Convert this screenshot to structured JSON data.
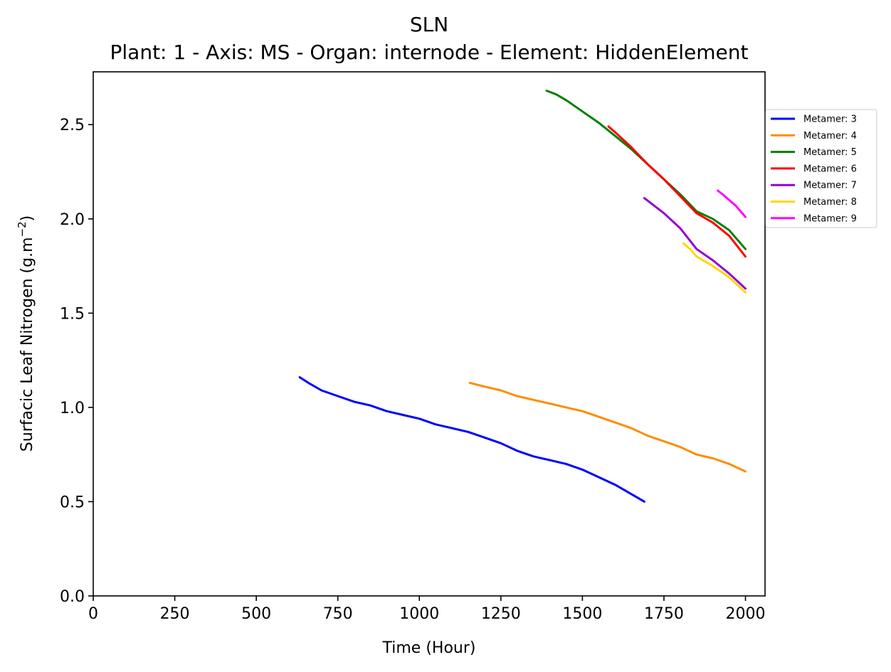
{
  "chart_data": {
    "type": "line",
    "title": "SLN",
    "subtitle": "Plant: 1 - Axis: MS - Organ: internode - Element: HiddenElement",
    "xlabel": "Time (Hour)",
    "ylabel": "Surfacic Leaf Nitrogen (g.m",
    "ylabel_sup": "−2",
    "ylabel_close": ")",
    "xlim": [
      0,
      2060
    ],
    "ylim": [
      0,
      2.78
    ],
    "xticks": [
      0,
      250,
      500,
      750,
      1000,
      1250,
      1500,
      1750,
      2000
    ],
    "yticks": [
      0.0,
      0.5,
      1.0,
      1.5,
      2.0,
      2.5
    ],
    "xtick_labels": [
      "0",
      "250",
      "500",
      "750",
      "1000",
      "1250",
      "1500",
      "1750",
      "2000"
    ],
    "ytick_labels": [
      "0.0",
      "0.5",
      "1.0",
      "1.5",
      "2.0",
      "2.5"
    ],
    "legend_position": "right-outside-top",
    "grid": false,
    "series": [
      {
        "name": "Metamer: 3",
        "color": "#0000ff",
        "x": [
          633,
          660,
          700,
          750,
          800,
          850,
          900,
          950,
          1000,
          1050,
          1100,
          1150,
          1200,
          1250,
          1300,
          1350,
          1400,
          1450,
          1500,
          1550,
          1600,
          1650,
          1690
        ],
        "y": [
          1.16,
          1.13,
          1.09,
          1.06,
          1.03,
          1.01,
          0.98,
          0.96,
          0.94,
          0.91,
          0.89,
          0.87,
          0.84,
          0.81,
          0.77,
          0.74,
          0.72,
          0.7,
          0.67,
          0.63,
          0.59,
          0.54,
          0.5
        ]
      },
      {
        "name": "Metamer: 4",
        "color": "#ff8c00",
        "x": [
          1155,
          1200,
          1250,
          1300,
          1350,
          1400,
          1450,
          1500,
          1550,
          1600,
          1650,
          1700,
          1750,
          1800,
          1850,
          1900,
          1950,
          2000
        ],
        "y": [
          1.13,
          1.11,
          1.09,
          1.06,
          1.04,
          1.02,
          1.0,
          0.98,
          0.95,
          0.92,
          0.89,
          0.85,
          0.82,
          0.79,
          0.75,
          0.73,
          0.7,
          0.66
        ]
      },
      {
        "name": "Metamer: 5",
        "color": "#008000",
        "x": [
          1390,
          1420,
          1450,
          1500,
          1550,
          1600,
          1650,
          1700,
          1750,
          1800,
          1850,
          1900,
          1950,
          2000
        ],
        "y": [
          2.68,
          2.66,
          2.63,
          2.57,
          2.51,
          2.44,
          2.37,
          2.29,
          2.21,
          2.13,
          2.04,
          2.0,
          1.94,
          1.84
        ]
      },
      {
        "name": "Metamer: 6",
        "color": "#ff0000",
        "x": [
          1580,
          1600,
          1650,
          1700,
          1750,
          1800,
          1850,
          1900,
          1950,
          2000
        ],
        "y": [
          2.49,
          2.46,
          2.38,
          2.29,
          2.21,
          2.12,
          2.03,
          1.98,
          1.91,
          1.8
        ]
      },
      {
        "name": "Metamer: 7",
        "color": "#9400d3",
        "x": [
          1690,
          1720,
          1750,
          1800,
          1850,
          1900,
          1950,
          2000
        ],
        "y": [
          2.11,
          2.07,
          2.03,
          1.95,
          1.84,
          1.78,
          1.71,
          1.63
        ]
      },
      {
        "name": "Metamer: 8",
        "color": "#ffd700",
        "x": [
          1810,
          1830,
          1850,
          1900,
          1950,
          2000
        ],
        "y": [
          1.87,
          1.84,
          1.8,
          1.75,
          1.69,
          1.61
        ]
      },
      {
        "name": "Metamer: 9",
        "color": "#ff00ff",
        "x": [
          1915,
          1930,
          1950,
          1970,
          1990,
          2000
        ],
        "y": [
          2.15,
          2.13,
          2.1,
          2.07,
          2.03,
          2.01
        ]
      }
    ]
  }
}
